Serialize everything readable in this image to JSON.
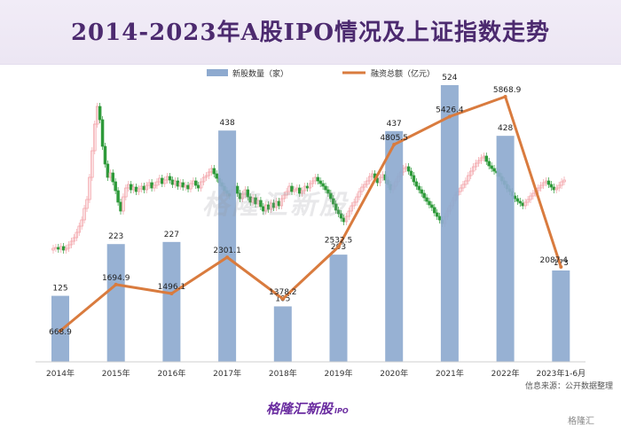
{
  "title": "2014-2023年A股IPO情况及上证指数走势",
  "source_note": "信息来源：公开数据整理",
  "brand": "格隆汇新股",
  "brand_suffix": "IPO",
  "watermark": "格隆汇新股",
  "corner_mark": "格隆汇",
  "colors": {
    "bar": "#8eaacf",
    "line": "#d97b3e",
    "candle_up": "#f2a0a6",
    "candle_down": "#2e9a3a",
    "title": "#4c2a6f"
  },
  "chart_data": {
    "type": "bar",
    "categories": [
      "2014年",
      "2015年",
      "2016年",
      "2017年",
      "2018年",
      "2019年",
      "2020年",
      "2021年",
      "2022年",
      "2023年1-6月"
    ],
    "series": [
      {
        "name": "新股数量（家）",
        "type": "bar",
        "values": [
          125,
          223,
          227,
          438,
          105,
          203,
          437,
          524,
          428,
          173
        ]
      },
      {
        "name": "融资总额（亿元）",
        "type": "line",
        "values": [
          668.9,
          1694.9,
          1496.1,
          2301.1,
          1378.2,
          2532.5,
          4805.5,
          5426.4,
          5868.9,
          2087.4
        ]
      }
    ],
    "legend_position": "top-center",
    "grid": false,
    "background_overlay": "上证指数 candlestick (monthly), unlabeled"
  }
}
